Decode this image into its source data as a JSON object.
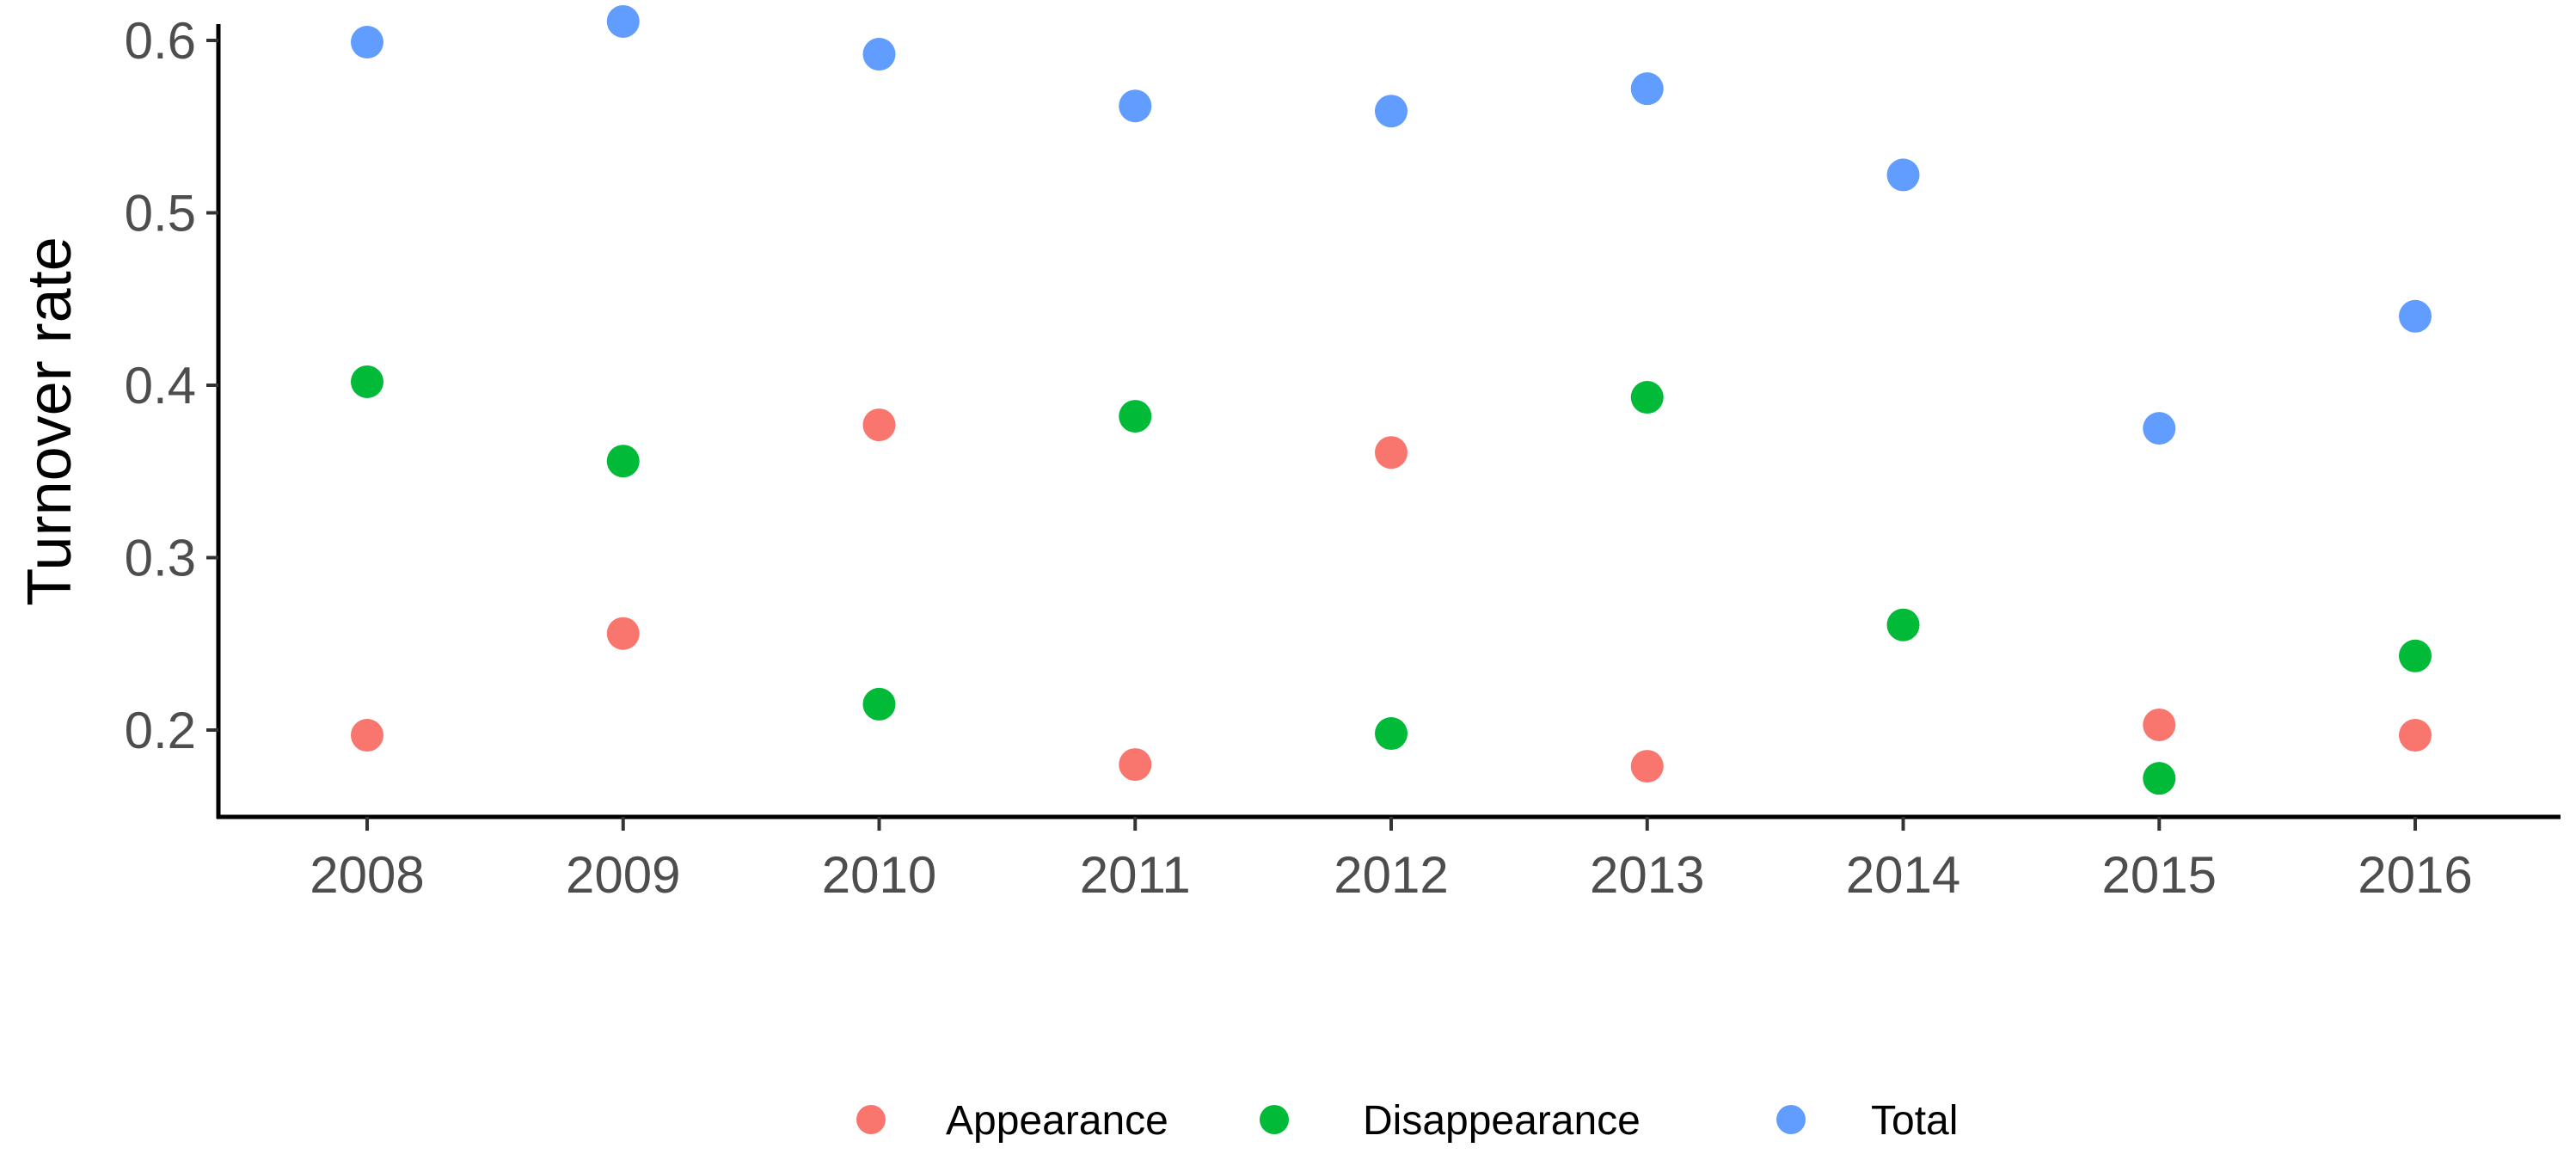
{
  "chart_data": {
    "type": "scatter",
    "title": "",
    "xlabel": "",
    "ylabel": "Turnover rate",
    "categories": [
      "2008",
      "2009",
      "2010",
      "2011",
      "2012",
      "2013",
      "2014",
      "2015",
      "2016"
    ],
    "ylim": [
      0.15,
      0.63
    ],
    "yticks": [
      0.2,
      0.3,
      0.4,
      0.5,
      0.6
    ],
    "ytick_labels": [
      "0.2",
      "0.3",
      "0.4",
      "0.5",
      "0.6"
    ],
    "grid": false,
    "legend_position": "bottom",
    "series": [
      {
        "name": "Appearance",
        "color": "#F8766D",
        "values": [
          0.197,
          0.256,
          0.377,
          0.18,
          0.361,
          0.179,
          null,
          0.203,
          0.197
        ]
      },
      {
        "name": "Disappearance",
        "color": "#00BA38",
        "values": [
          0.402,
          0.356,
          0.215,
          0.382,
          0.198,
          0.393,
          0.261,
          0.172,
          0.243
        ]
      },
      {
        "name": "Total",
        "color": "#619CFF",
        "values": [
          0.599,
          0.611,
          0.592,
          0.562,
          0.559,
          0.572,
          0.522,
          0.375,
          0.44
        ]
      }
    ]
  }
}
